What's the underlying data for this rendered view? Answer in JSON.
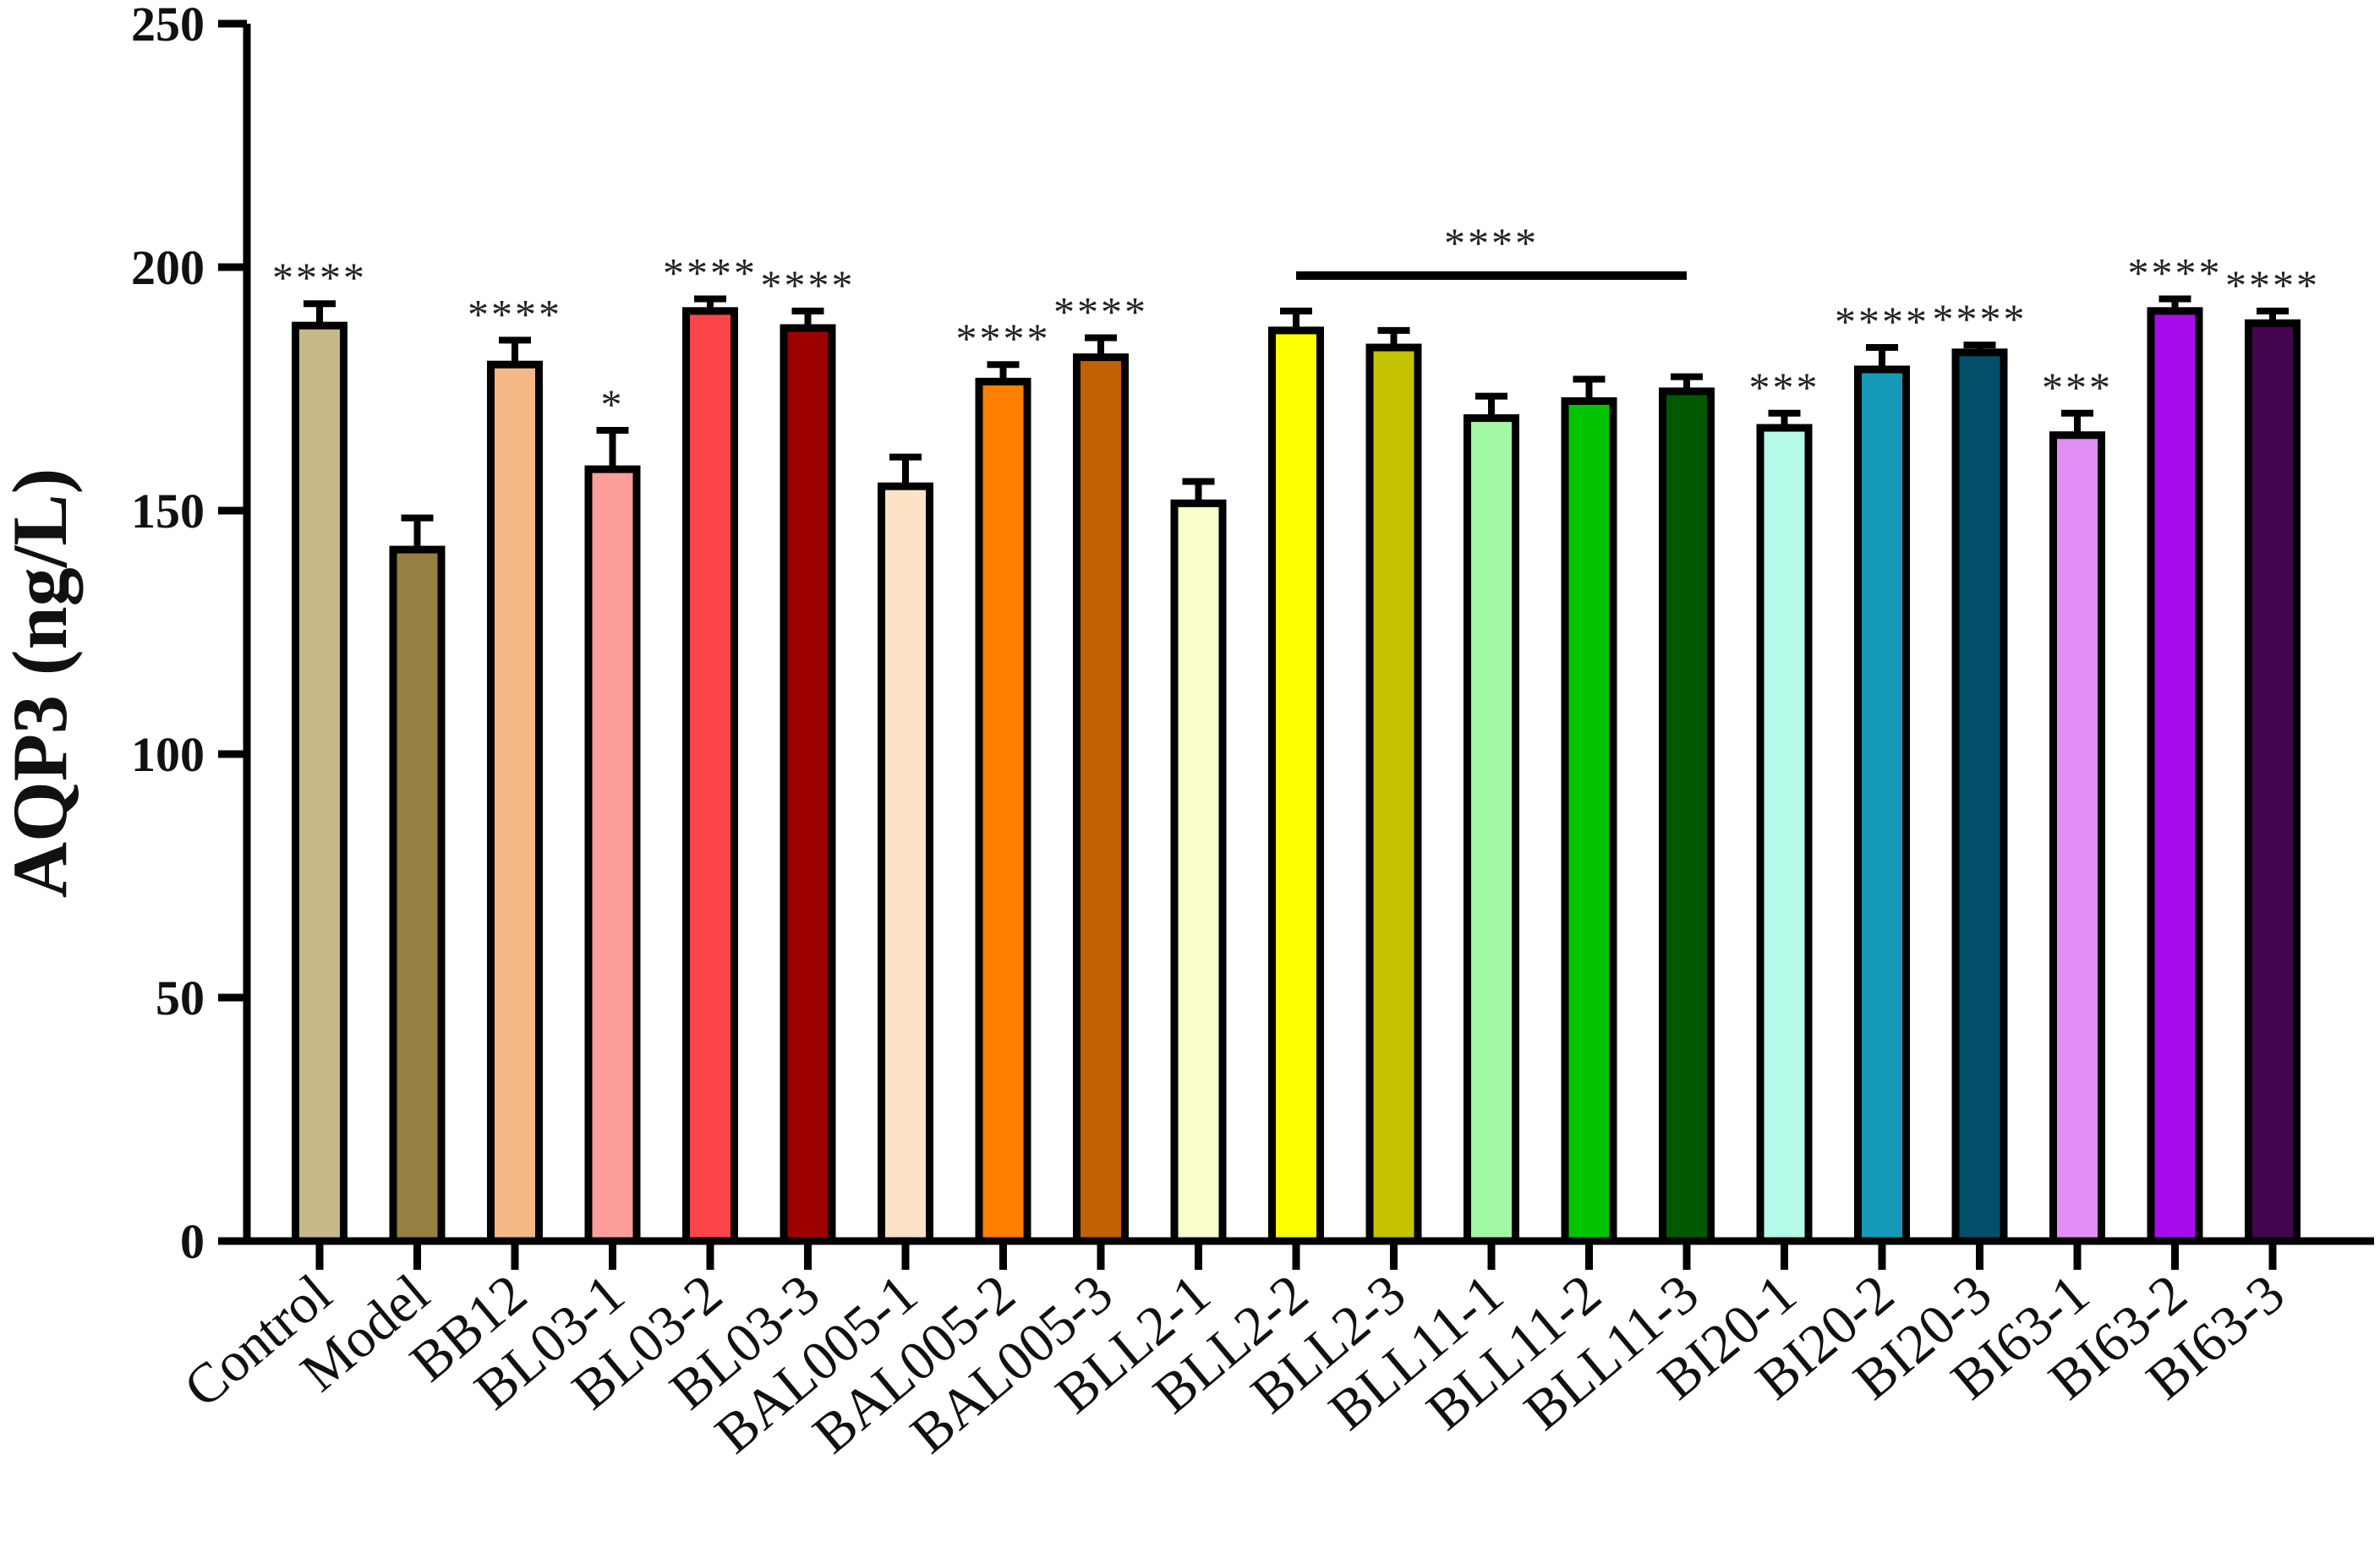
{
  "chart_data": {
    "type": "bar",
    "ylabel": "AQP3 (ng/L)",
    "xlabel": "",
    "ylim": [
      0,
      250
    ],
    "yticks": [
      0,
      50,
      100,
      150,
      200,
      250
    ],
    "grid": false,
    "legend": "none",
    "categories": [
      "Control",
      "Model",
      "BB12",
      "BL03-1",
      "BL03-2",
      "BL03-3",
      "BAL005-1",
      "BAL005-2",
      "BAL005-3",
      "BLL2-1",
      "BLL2-2",
      "BLL2-3",
      "BLL11-1",
      "BLL11-2",
      "BLL11-3",
      "BI20-1",
      "BI20-2",
      "BI20-3",
      "BI63-1",
      "BI63-2",
      "BI63-3"
    ],
    "values": [
      188,
      142,
      180,
      158.5,
      191,
      187.5,
      155,
      176.5,
      181.5,
      151.5,
      187,
      183.5,
      169,
      172.5,
      174.5,
      167,
      179,
      182.5,
      165.5,
      191,
      188.5
    ],
    "errors": [
      4.5,
      6.5,
      5,
      8,
      2.5,
      3.5,
      6,
      3.5,
      4,
      4.5,
      4,
      3.5,
      4.5,
      4.5,
      3,
      3,
      4.5,
      1.5,
      4.5,
      2.5,
      2.5
    ],
    "colors": [
      "#c7b98a",
      "#967f45",
      "#f4b886",
      "#fd9e9c",
      "#fb4549",
      "#9e0002",
      "#fde2c5",
      "#ff7f00",
      "#c35f05",
      "#f8fdca",
      "#fefe00",
      "#c4c100",
      "#a2f8a2",
      "#00c500",
      "#005800",
      "#b5fae8",
      "#1599b9",
      "#044f69",
      "#e18ef7",
      "#a60deb",
      "#43064f"
    ],
    "significance": [
      "****",
      "",
      "****",
      "*",
      "****",
      "****",
      "",
      "****",
      "****",
      "",
      "",
      "",
      "",
      "",
      "",
      "***",
      "****",
      "****",
      "***",
      "****",
      "****"
    ],
    "group_annotation": {
      "from": "BLL2-2",
      "to": "BLL11-3",
      "label": "****"
    }
  }
}
